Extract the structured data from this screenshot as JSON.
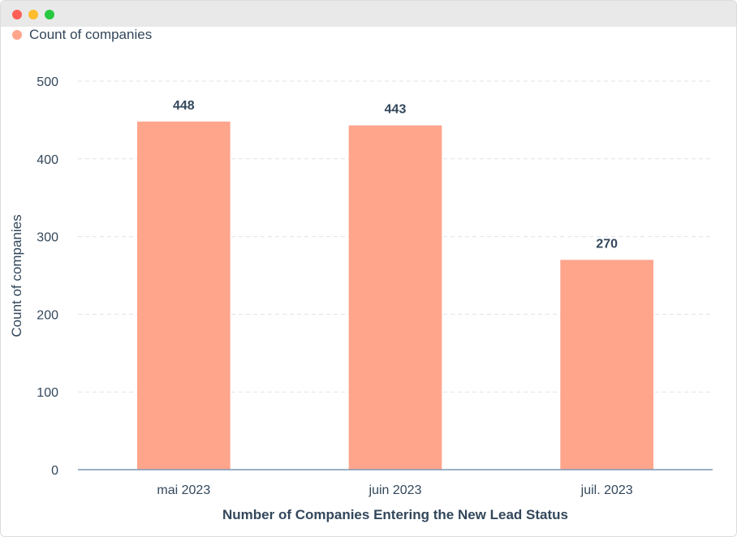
{
  "window": {
    "controls": [
      "close",
      "minimize",
      "maximize"
    ]
  },
  "chart_data": {
    "type": "bar",
    "title": "",
    "categories": [
      "mai 2023",
      "juin 2023",
      "juil. 2023"
    ],
    "series": [
      {
        "name": "Count of companies",
        "values": [
          448,
          443,
          270
        ],
        "color": "#ffa58c"
      }
    ],
    "xlabel": "Number of Companies Entering the New Lead Status",
    "ylabel": "Count of companies",
    "ylim": [
      0,
      500
    ],
    "yticks": [
      0,
      100,
      200,
      300,
      400,
      500
    ],
    "grid": true,
    "legend_position": "top-left",
    "data_labels": true
  }
}
